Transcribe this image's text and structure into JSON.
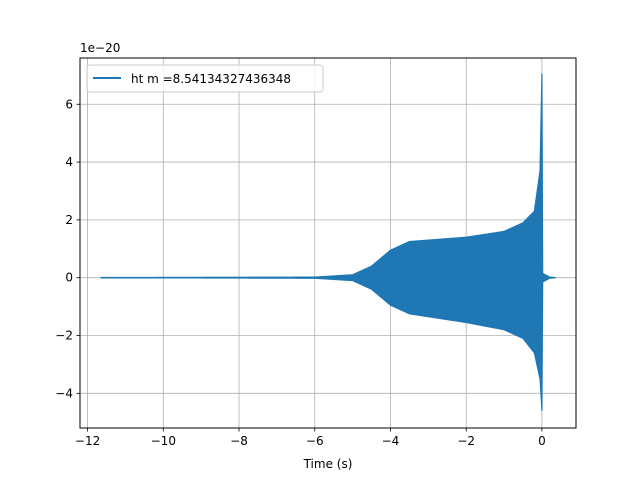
{
  "chart_data": {
    "type": "line",
    "title": "",
    "xlabel": "Time (s)",
    "ylabel": "",
    "xlim": [
      -12.2,
      0.9
    ],
    "ylim": [
      -5.2,
      7.6
    ],
    "y_offset_text": "1e−20",
    "grid": true,
    "legend": "top-left",
    "xticks": [
      -12,
      -10,
      -8,
      -6,
      -4,
      -2,
      0
    ],
    "xtick_labels": [
      "−12",
      "−10",
      "−8",
      "−6",
      "−4",
      "−2",
      "0"
    ],
    "yticks": [
      -4,
      -2,
      0,
      2,
      4,
      6
    ],
    "ytick_labels": [
      "−4",
      "−2",
      "0",
      "2",
      "4",
      "6"
    ],
    "series": [
      {
        "name": "ht m =8.54134327436348",
        "color": "#1f77b4",
        "x_range": [
          -11.65,
          0.35
        ],
        "upper_envelope": [
          [
            -11.65,
            0.0
          ],
          [
            -6.0,
            0.02
          ],
          [
            -5.0,
            0.1
          ],
          [
            -4.5,
            0.4
          ],
          [
            -4.0,
            0.95
          ],
          [
            -3.5,
            1.25
          ],
          [
            -3.0,
            1.3
          ],
          [
            -2.0,
            1.4
          ],
          [
            -1.0,
            1.6
          ],
          [
            -0.5,
            1.9
          ],
          [
            -0.2,
            2.3
          ],
          [
            -0.05,
            3.7
          ],
          [
            0.0,
            7.05
          ],
          [
            0.02,
            0.15
          ],
          [
            0.2,
            0.02
          ],
          [
            0.35,
            0.0
          ]
        ],
        "lower_envelope": [
          [
            -11.65,
            0.0
          ],
          [
            -6.0,
            -0.02
          ],
          [
            -5.0,
            -0.1
          ],
          [
            -4.5,
            -0.4
          ],
          [
            -4.0,
            -0.95
          ],
          [
            -3.5,
            -1.25
          ],
          [
            -3.0,
            -1.35
          ],
          [
            -2.0,
            -1.55
          ],
          [
            -1.0,
            -1.8
          ],
          [
            -0.5,
            -2.1
          ],
          [
            -0.2,
            -2.6
          ],
          [
            -0.05,
            -3.5
          ],
          [
            0.0,
            -4.6
          ],
          [
            0.02,
            -0.15
          ],
          [
            0.2,
            -0.02
          ],
          [
            0.35,
            0.0
          ]
        ]
      }
    ]
  }
}
